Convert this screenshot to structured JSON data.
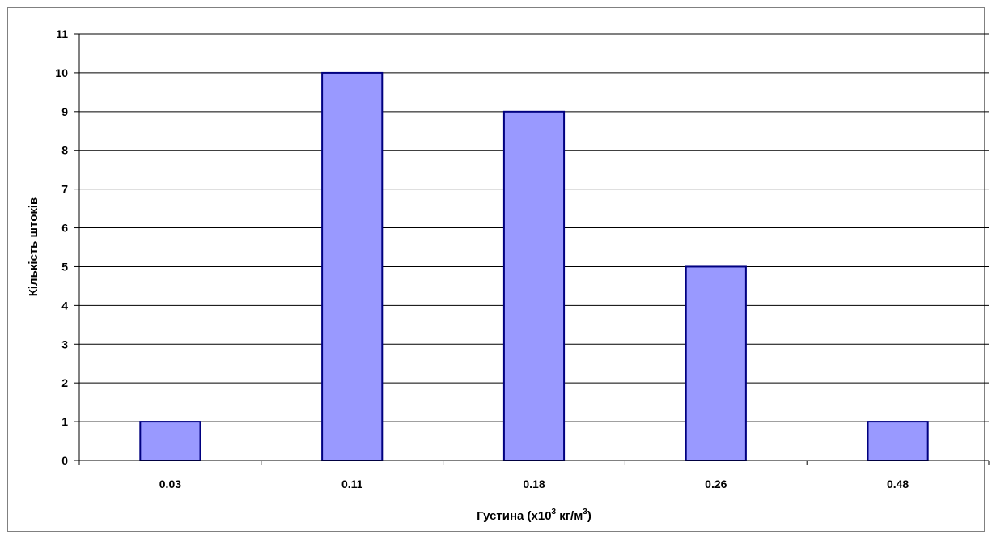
{
  "chart_data": {
    "type": "bar",
    "categories": [
      "0.03",
      "0.11",
      "0.18",
      "0.26",
      "0.48"
    ],
    "values": [
      1,
      10,
      9,
      5,
      1
    ],
    "title": "",
    "xlabel": {
      "prefix": "Густина (х10",
      "sup1": "3",
      "middle": " кг/м",
      "sup2": "3",
      "suffix": ")"
    },
    "ylabel": "Кількість штоків",
    "ylim": [
      0,
      11
    ],
    "yticks": [
      0,
      1,
      2,
      3,
      4,
      5,
      6,
      7,
      8,
      9,
      10,
      11
    ],
    "grid": true,
    "legend": "none",
    "colors": {
      "bar_fill": "#9999ff",
      "bar_stroke": "#000080",
      "grid": "#000000",
      "axis": "#000000"
    }
  }
}
